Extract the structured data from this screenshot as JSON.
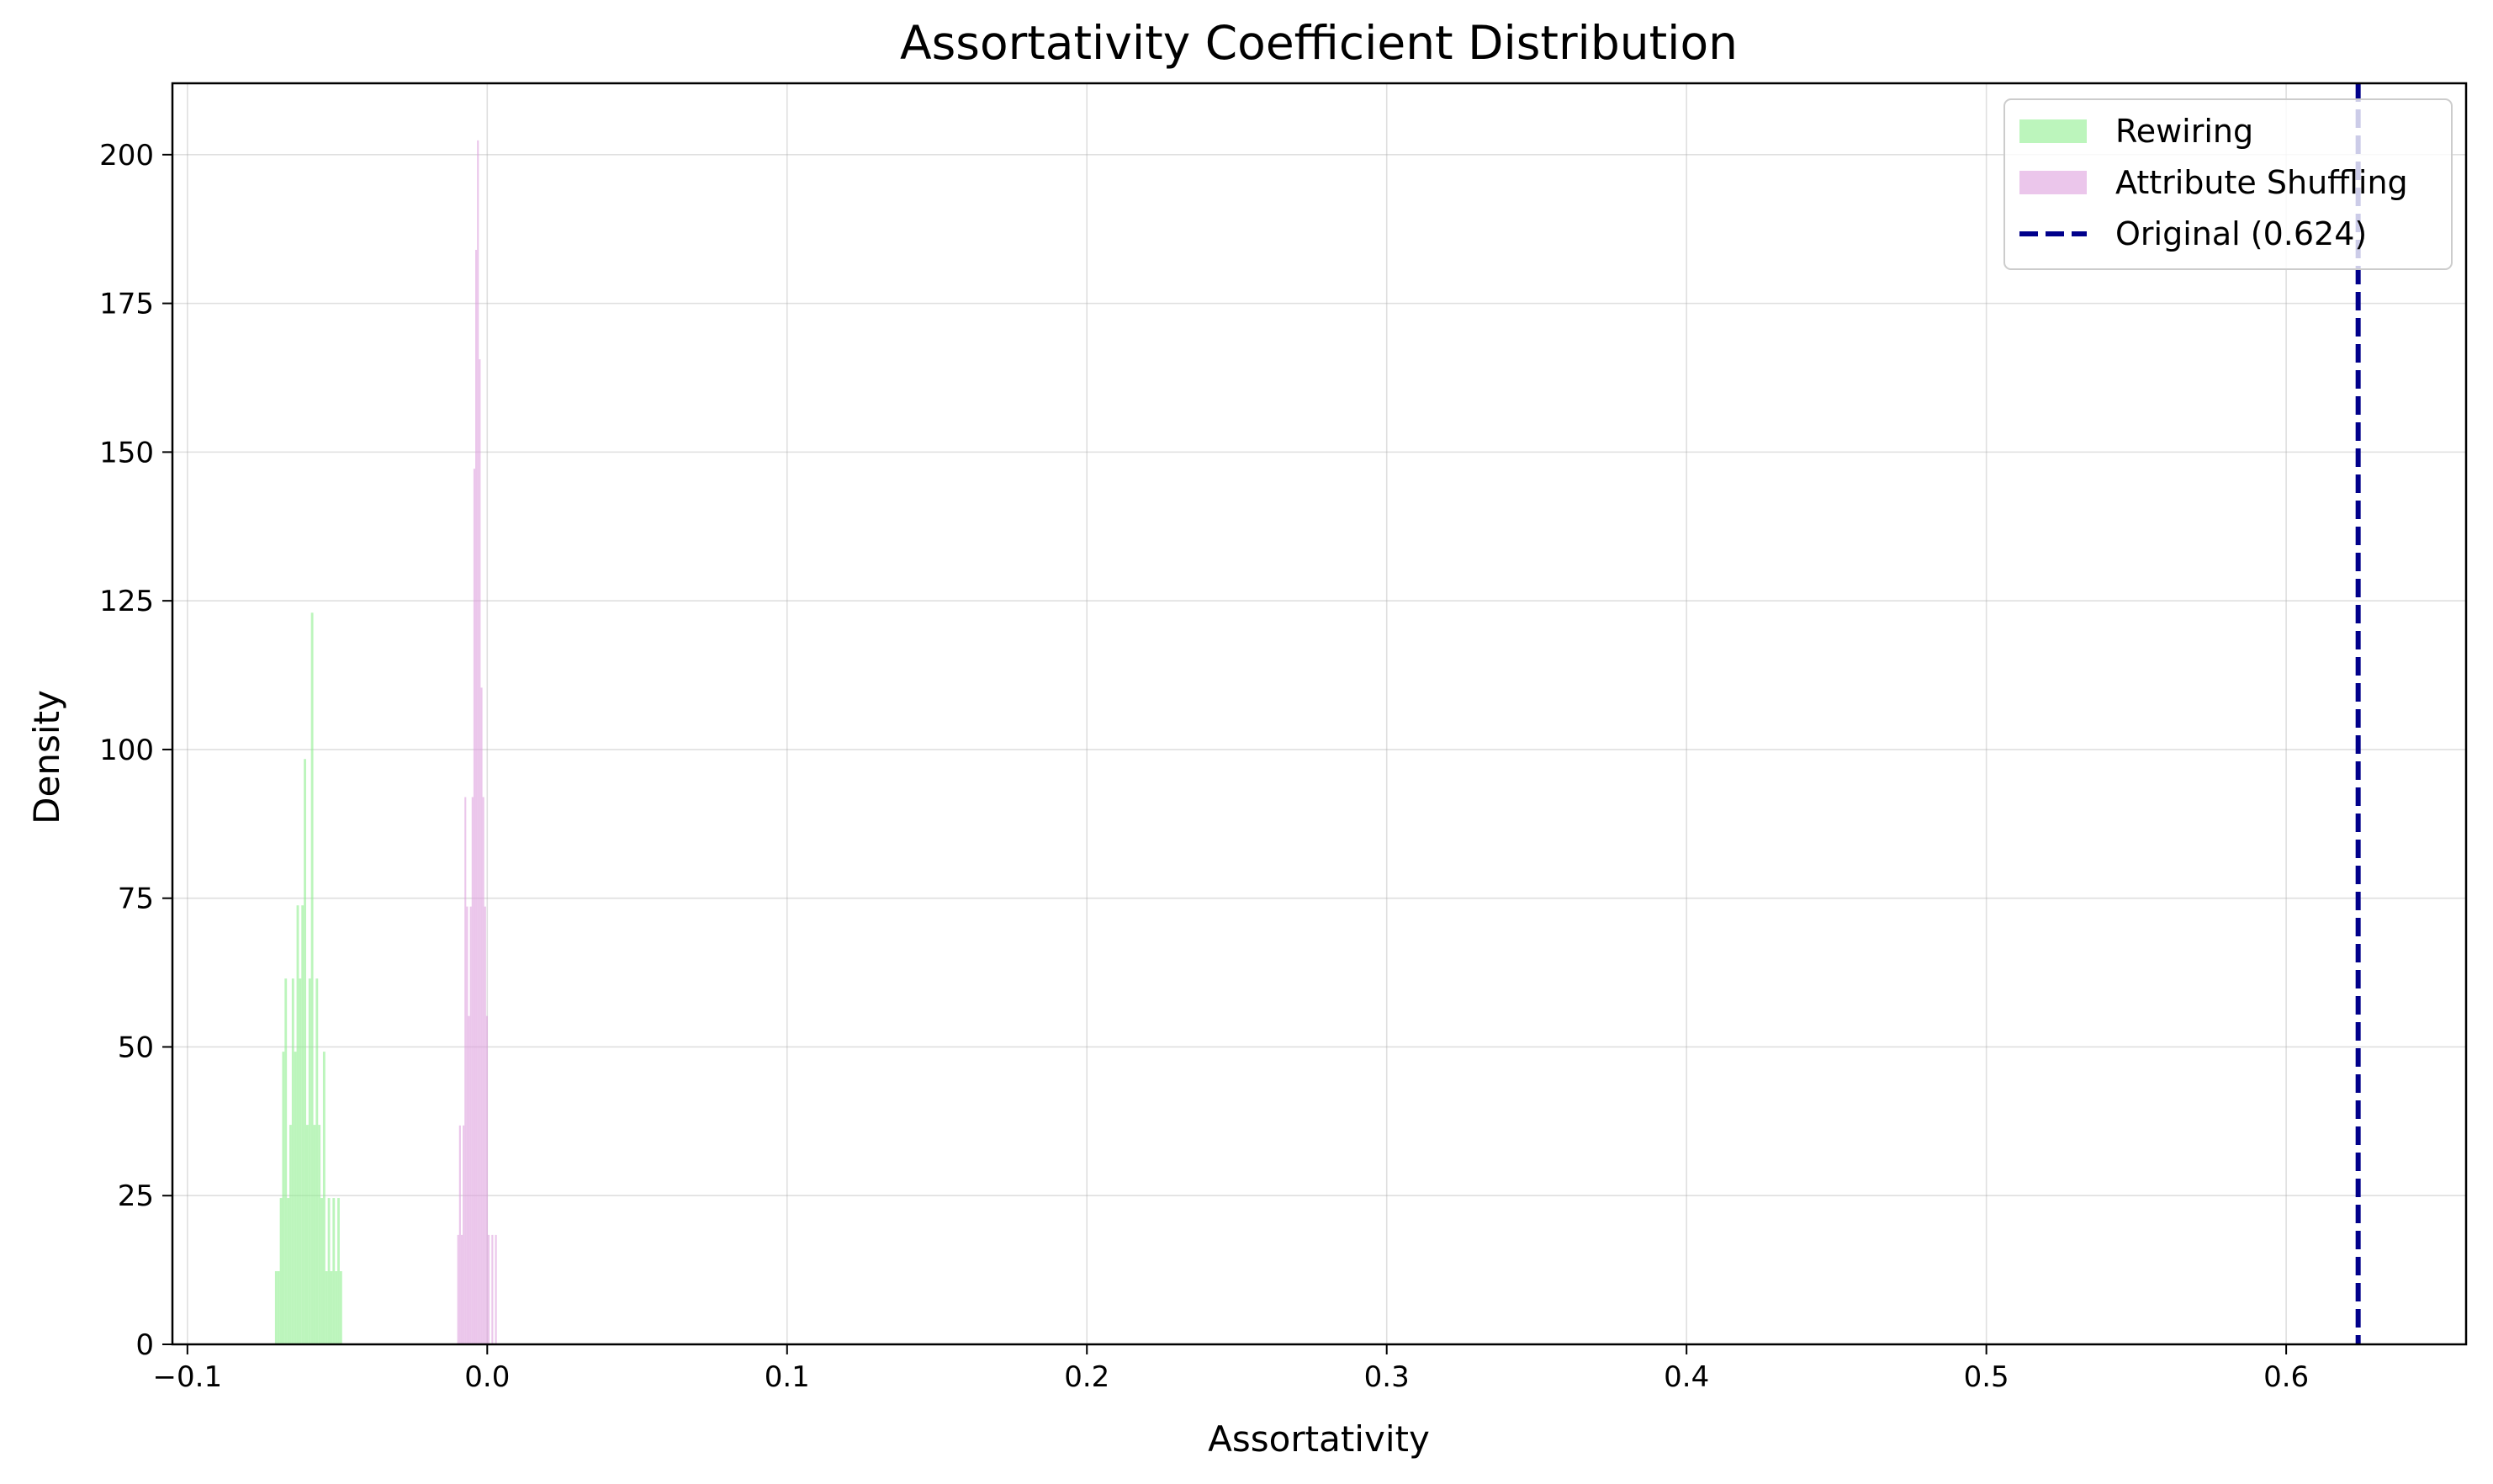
{
  "chart_data": {
    "type": "bar",
    "title": "Assortativity Coefficient Distribution",
    "xlabel": "Assortativity",
    "ylabel": "Density",
    "xlim": [
      -0.105,
      0.66
    ],
    "ylim": [
      0,
      212
    ],
    "xticks": [
      -0.1,
      0.0,
      0.1,
      0.2,
      0.3,
      0.4,
      0.5,
      0.6
    ],
    "xtick_labels": [
      "−0.1",
      "0.0",
      "0.1",
      "0.2",
      "0.3",
      "0.4",
      "0.5",
      "0.6"
    ],
    "yticks": [
      0,
      25,
      50,
      75,
      100,
      125,
      150,
      175,
      200
    ],
    "ytick_labels": [
      "0",
      "25",
      "50",
      "75",
      "100",
      "125",
      "150",
      "175",
      "200"
    ],
    "grid": true,
    "legend_position": "upper right",
    "series": [
      {
        "name": "Rewiring",
        "kind": "histogram",
        "color": "#90ee90",
        "alpha": 0.6,
        "bins": [
          [
            -0.0708,
            -0.07,
            12.3
          ],
          [
            -0.07,
            -0.0692,
            12.3
          ],
          [
            -0.0692,
            -0.0684,
            24.6
          ],
          [
            -0.0684,
            -0.0676,
            49.2
          ],
          [
            -0.0676,
            -0.0668,
            61.5
          ],
          [
            -0.0668,
            -0.066,
            24.6
          ],
          [
            -0.066,
            -0.0652,
            36.9
          ],
          [
            -0.0652,
            -0.0644,
            61.5
          ],
          [
            -0.0644,
            -0.0636,
            49.2
          ],
          [
            -0.0636,
            -0.0628,
            73.8
          ],
          [
            -0.0628,
            -0.062,
            61.5
          ],
          [
            -0.062,
            -0.0612,
            73.8
          ],
          [
            -0.0612,
            -0.0604,
            98.4
          ],
          [
            -0.0604,
            -0.0596,
            36.9
          ],
          [
            -0.0596,
            -0.0588,
            61.5
          ],
          [
            -0.0588,
            -0.058,
            123.0
          ],
          [
            -0.058,
            -0.0572,
            36.9
          ],
          [
            -0.0572,
            -0.0564,
            61.5
          ],
          [
            -0.0564,
            -0.0556,
            36.9
          ],
          [
            -0.0556,
            -0.0548,
            24.6
          ],
          [
            -0.0548,
            -0.054,
            49.2
          ],
          [
            -0.054,
            -0.0532,
            12.3
          ],
          [
            -0.0532,
            -0.0524,
            24.6
          ],
          [
            -0.0524,
            -0.0516,
            12.3
          ],
          [
            -0.0516,
            -0.0508,
            24.6
          ],
          [
            -0.0508,
            -0.05,
            12.3
          ],
          [
            -0.05,
            -0.0492,
            24.6
          ],
          [
            -0.0492,
            -0.0484,
            12.3
          ]
        ]
      },
      {
        "name": "Attribute Shuffling",
        "kind": "histogram",
        "color": "#dda0dd",
        "alpha": 0.6,
        "bins": [
          [
            -0.01,
            -0.0094,
            18.4
          ],
          [
            -0.0094,
            -0.0088,
            36.8
          ],
          [
            -0.0088,
            -0.0082,
            18.4
          ],
          [
            -0.0082,
            -0.0076,
            36.8
          ],
          [
            -0.0076,
            -0.007,
            92.0
          ],
          [
            -0.007,
            -0.0064,
            73.6
          ],
          [
            -0.0064,
            -0.0058,
            55.2
          ],
          [
            -0.0058,
            -0.0052,
            73.6
          ],
          [
            -0.0052,
            -0.0046,
            92.0
          ],
          [
            -0.0046,
            -0.004,
            147.2
          ],
          [
            -0.004,
            -0.0034,
            184.0
          ],
          [
            -0.0034,
            -0.0028,
            202.4
          ],
          [
            -0.0028,
            -0.0022,
            165.6
          ],
          [
            -0.0022,
            -0.0016,
            110.4
          ],
          [
            -0.0016,
            -0.001,
            92.0
          ],
          [
            -0.001,
            -0.0004,
            73.6
          ],
          [
            -0.0004,
            0.0002,
            55.2
          ],
          [
            0.0002,
            0.0008,
            18.4
          ],
          [
            0.0008,
            0.0014,
            0.0
          ],
          [
            0.0014,
            0.002,
            18.4
          ],
          [
            0.002,
            0.0026,
            0.0
          ],
          [
            0.0026,
            0.0032,
            18.4
          ]
        ]
      },
      {
        "name": "Original (0.624)",
        "kind": "vline",
        "x": 0.624,
        "color": "#00008b",
        "dash": true
      }
    ]
  }
}
